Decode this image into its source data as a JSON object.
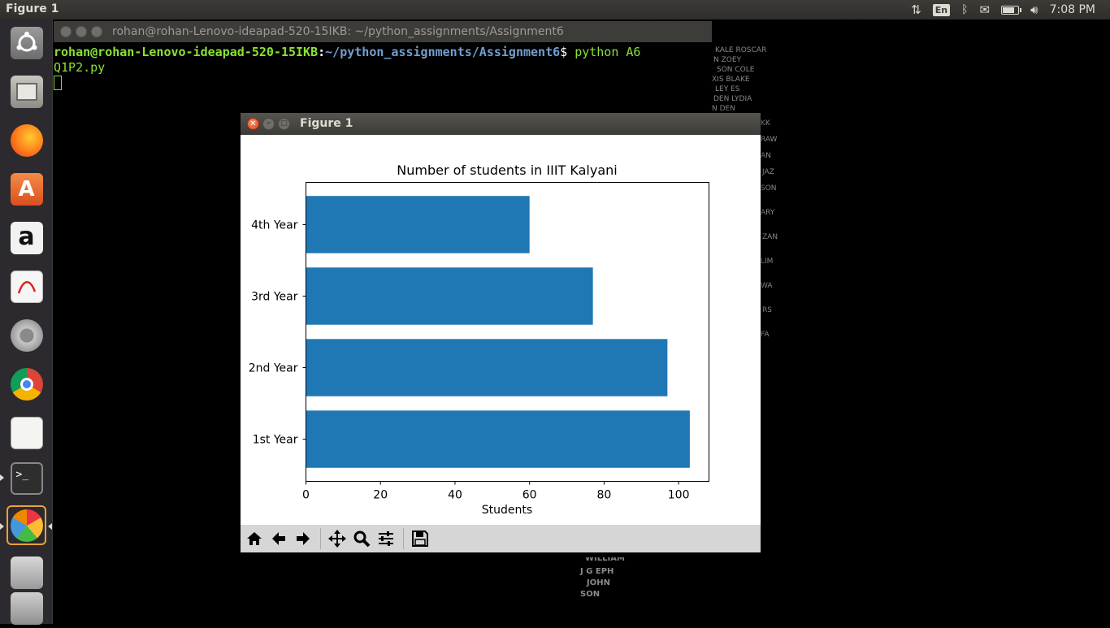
{
  "topbar": {
    "app_title": "Figure 1",
    "lang": "En",
    "clock": "7:08 PM",
    "battery_level": 0.75
  },
  "launcher": {
    "items": [
      {
        "name": "ubuntu-dash-icon"
      },
      {
        "name": "files-icon"
      },
      {
        "name": "firefox-icon"
      },
      {
        "name": "software-center-icon"
      },
      {
        "name": "amazon-icon"
      },
      {
        "name": "document-viewer-icon"
      },
      {
        "name": "system-settings-icon"
      },
      {
        "name": "chrome-icon"
      },
      {
        "name": "text-editor-icon"
      },
      {
        "name": "terminal-icon"
      },
      {
        "name": "matplotlib-figure-icon"
      },
      {
        "name": "disk-icon"
      },
      {
        "name": "trash-icon"
      }
    ]
  },
  "terminal": {
    "title": "rohan@rohan-Lenovo-ideapad-520-15IKB: ~/python_assignments/Assignment6",
    "prompt_user": "rohan@rohan-Lenovo-ideapad-520-15IKB",
    "prompt_sep": ":",
    "prompt_path": "~/python_assignments/Assignment6",
    "prompt_dollar": "$ ",
    "command_line1": "python A6",
    "command_line2": "Q1P2.py"
  },
  "figure": {
    "title": "Figure 1"
  },
  "chart_data": {
    "type": "bar",
    "orientation": "horizontal",
    "title": "Number of students in IIIT Kalyani",
    "xlabel": "Students",
    "ylabel": "",
    "categories": [
      "1st Year",
      "2nd Year",
      "3rd Year",
      "4th Year"
    ],
    "values": [
      103,
      97,
      77,
      60
    ],
    "xlim": [
      0,
      108.15
    ],
    "xticks": [
      0,
      20,
      40,
      60,
      80,
      100
    ],
    "bar_color": "#1f77b4",
    "grid": false
  },
  "toolbar": {
    "buttons": [
      "home-icon",
      "back-icon",
      "forward-icon",
      "pan-icon",
      "zoom-icon",
      "configure-subplots-icon",
      "save-icon"
    ]
  }
}
